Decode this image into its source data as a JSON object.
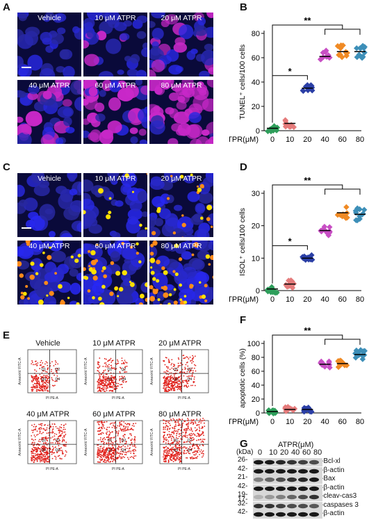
{
  "panels": {
    "A": {
      "letter": "A",
      "images": [
        "Vehicle",
        "10 μM ATPR",
        "20 μM ATPR",
        "40 μM ATPR",
        "60 μM ATPR",
        "80 μM ATPR"
      ]
    },
    "C": {
      "letter": "C",
      "images": [
        "Vehicle",
        "10 μM ATPR",
        "20 μM ATPR",
        "40 μM ATPR",
        "60 μM ATPR",
        "80 μM ATPR"
      ]
    },
    "E": {
      "letter": "E",
      "plots": [
        "Vehicle",
        "10 μM ATPR",
        "20 μM ATPR",
        "40 μM ATPR",
        "60 μM ATPR",
        "80 μM ATPR"
      ],
      "xlabel": "PI PE-A",
      "ylabel": "AnnexinV FITC-A",
      "quadrants": [
        "Q1",
        "Q2",
        "Q3",
        "Q4"
      ]
    },
    "G": {
      "letter": "G",
      "unit": "(kDa)",
      "header": "ATPR(μM)",
      "doses": [
        "0",
        "10",
        "20",
        "40",
        "60",
        "80"
      ],
      "rows": [
        {
          "kda": "26-",
          "name": "-Bcl-xl",
          "intensity": [
            0.9,
            0.9,
            0.85,
            0.8,
            0.75,
            0.7
          ]
        },
        {
          "kda": "42-",
          "name": "-β-actin",
          "intensity": [
            0.9,
            0.9,
            0.9,
            0.9,
            0.9,
            0.9
          ]
        },
        {
          "kda": "21-",
          "name": "-Bax",
          "intensity": [
            0.5,
            0.6,
            0.7,
            0.8,
            0.85,
            0.9
          ]
        },
        {
          "kda": "42-",
          "name": "-β-actin",
          "intensity": [
            0.9,
            0.9,
            0.9,
            0.9,
            0.9,
            0.9
          ]
        },
        {
          "kda": "19-\n17-",
          "name": "-cleav-cas3",
          "intensity": [
            0.3,
            0.4,
            0.5,
            0.6,
            0.7,
            0.8
          ]
        },
        {
          "kda": "32-",
          "name": "-caspases 3",
          "intensity": [
            0.8,
            0.8,
            0.75,
            0.7,
            0.7,
            0.65
          ]
        },
        {
          "kda": "42-",
          "name": "-β-actin",
          "intensity": [
            0.9,
            0.9,
            0.9,
            0.9,
            0.9,
            0.9
          ]
        }
      ]
    }
  },
  "chart_data": [
    {
      "panel": "B",
      "type": "scatter",
      "ylabel": "TUNEL⁺ cells/100 cells",
      "xlabel": "ATPR(μM)",
      "categories": [
        "0",
        "10",
        "20",
        "40",
        "60",
        "80"
      ],
      "ylim": [
        0,
        80
      ],
      "yticks": [
        0,
        20,
        40,
        60,
        80
      ],
      "means": [
        2,
        6,
        35,
        61,
        65,
        65
      ],
      "sig": [
        {
          "from": 0,
          "to": 2,
          "label": "*"
        },
        {
          "from": 0,
          "to": [
            3,
            5
          ],
          "label": "**"
        }
      ]
    },
    {
      "panel": "D",
      "type": "scatter",
      "ylabel": "ISOL⁺ cells/100 cells",
      "xlabel": "ATPR(μM)",
      "categories": [
        "0",
        "10",
        "20",
        "40",
        "60",
        "80"
      ],
      "ylim": [
        0,
        30
      ],
      "yticks": [
        0,
        10,
        20,
        30
      ],
      "means": [
        0.5,
        2,
        10,
        18.5,
        24,
        23.5
      ],
      "sig": [
        {
          "from": 0,
          "to": 2,
          "label": "*"
        },
        {
          "from": 0,
          "to": [
            3,
            5
          ],
          "label": "**"
        }
      ]
    },
    {
      "panel": "F",
      "type": "scatter",
      "ylabel": "apoptotic cells (%)",
      "xlabel": "ATPR(μM)",
      "categories": [
        "0",
        "10",
        "20",
        "40",
        "60",
        "80"
      ],
      "ylim": [
        0,
        100
      ],
      "yticks": [
        0,
        20,
        40,
        60,
        80,
        100
      ],
      "means": [
        2,
        5,
        5,
        70,
        71,
        84
      ],
      "sig": [
        {
          "from": 0,
          "to": [
            3,
            5
          ],
          "label": "**"
        }
      ]
    }
  ],
  "colors": {
    "cat": [
      "#2e9e5b",
      "#e57b7b",
      "#2b3fa6",
      "#c84fc4",
      "#f08a24",
      "#3d8fb8"
    ]
  }
}
